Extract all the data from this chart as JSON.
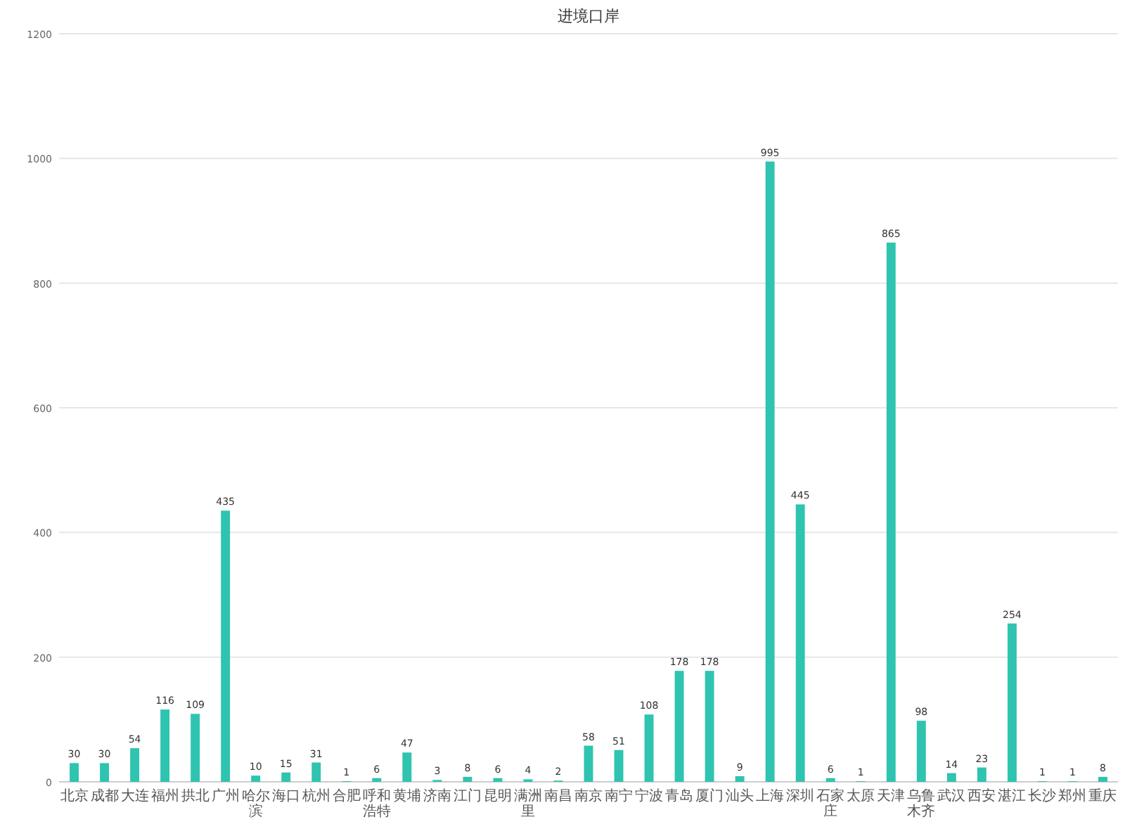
{
  "chart_data": {
    "type": "bar",
    "title": "进境口岸",
    "categories": [
      "北京",
      "成都",
      "大连",
      "福州",
      "拱北",
      "广州",
      "哈尔滨",
      "海口",
      "杭州",
      "合肥",
      "呼和浩特",
      "黄埔",
      "济南",
      "江门",
      "昆明",
      "满洲里",
      "南昌",
      "南京",
      "南宁",
      "宁波",
      "青岛",
      "厦门",
      "汕头",
      "上海",
      "深圳",
      "石家庄",
      "太原",
      "天津",
      "乌鲁木齐",
      "武汉",
      "西安",
      "湛江",
      "长沙",
      "郑州",
      "重庆"
    ],
    "values": [
      30,
      30,
      54,
      116,
      109,
      435,
      10,
      15,
      31,
      1,
      6,
      47,
      3,
      8,
      6,
      4,
      2,
      58,
      51,
      108,
      178,
      178,
      9,
      995,
      445,
      6,
      1,
      865,
      98,
      14,
      23,
      254,
      1,
      1,
      8
    ],
    "color": "#2ec4b0",
    "ylim": [
      0,
      1200
    ],
    "yticks": [
      0,
      200,
      400,
      600,
      800,
      1000,
      1200
    ],
    "grid": "y",
    "data_labels": true
  }
}
